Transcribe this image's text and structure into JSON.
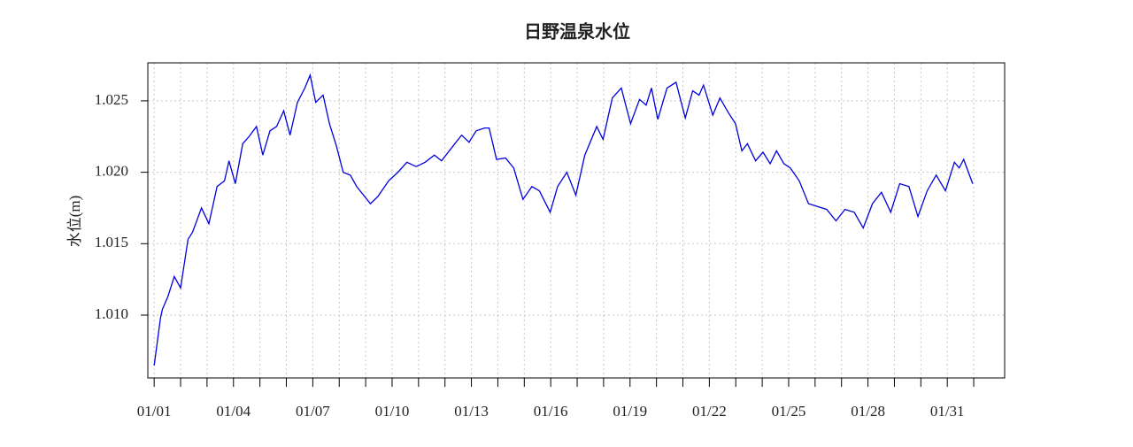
{
  "chart_data": {
    "type": "line",
    "title": "日野温泉水位",
    "y_label": "水位(m)",
    "x": [
      1.0,
      1.24,
      1.31,
      1.52,
      1.76,
      2.0,
      2.28,
      2.45,
      2.79,
      3.07,
      3.38,
      3.66,
      3.83,
      4.07,
      4.35,
      4.59,
      4.87,
      5.11,
      5.38,
      5.63,
      5.9,
      6.14,
      6.42,
      6.7,
      6.9,
      7.11,
      7.39,
      7.63,
      7.9,
      8.15,
      8.42,
      8.66,
      9.18,
      9.46,
      9.87,
      10.22,
      10.56,
      10.91,
      11.25,
      11.6,
      11.87,
      12.29,
      12.63,
      12.91,
      13.18,
      13.5,
      13.67,
      13.95,
      14.29,
      14.6,
      14.95,
      15.29,
      15.57,
      15.98,
      16.26,
      16.61,
      16.95,
      17.29,
      17.74,
      17.98,
      18.33,
      18.67,
      19.02,
      19.36,
      19.61,
      19.81,
      20.05,
      20.4,
      20.74,
      21.09,
      21.37,
      21.61,
      21.78,
      22.13,
      22.4,
      22.71,
      22.99,
      23.23,
      23.44,
      23.75,
      24.03,
      24.3,
      24.54,
      24.82,
      25.06,
      25.4,
      25.75,
      26.1,
      26.44,
      26.79,
      27.13,
      27.48,
      27.82,
      28.17,
      28.51,
      28.86,
      29.2,
      29.55,
      29.89,
      30.24,
      30.58,
      30.93,
      31.27,
      31.45,
      31.62,
      31.96
    ],
    "series": [
      {
        "name": "水位",
        "color": "#0000dd",
        "values": [
          1.00647,
          1.0098,
          1.0104,
          1.0113,
          1.0127,
          1.0119,
          1.0153,
          1.0158,
          1.0175,
          1.0164,
          1.019,
          1.0194,
          1.0208,
          1.0192,
          1.022,
          1.0225,
          1.0232,
          1.0212,
          1.0229,
          1.0232,
          1.0243,
          1.0226,
          1.0249,
          1.0259,
          1.0268,
          1.0249,
          1.0254,
          1.0234,
          1.0218,
          1.02,
          1.0198,
          1.019,
          1.0178,
          1.0183,
          1.0194,
          1.02,
          1.0207,
          1.0204,
          1.0207,
          1.0212,
          1.0208,
          1.0218,
          1.0226,
          1.0221,
          1.0229,
          1.0231,
          1.0231,
          1.0209,
          1.021,
          1.0203,
          1.0181,
          1.019,
          1.0187,
          1.0172,
          1.019,
          1.02,
          1.0184,
          1.0212,
          1.0232,
          1.0223,
          1.0252,
          1.0259,
          1.0234,
          1.0251,
          1.0247,
          1.0259,
          1.0237,
          1.0259,
          1.0263,
          1.0238,
          1.0257,
          1.0254,
          1.0261,
          1.024,
          1.0252,
          1.0242,
          1.0234,
          1.0215,
          1.022,
          1.0208,
          1.0214,
          1.0206,
          1.0215,
          1.0206,
          1.0203,
          1.0194,
          1.0178,
          1.0176,
          1.0174,
          1.0166,
          1.0174,
          1.0172,
          1.0161,
          1.0178,
          1.0186,
          1.0172,
          1.0192,
          1.019,
          1.0169,
          1.0187,
          1.0198,
          1.0187,
          1.0207,
          1.0203,
          1.0209,
          1.0192
        ]
      }
    ],
    "xlim": [
      0.76,
      33.17
    ],
    "ylim": [
      1.0056,
      1.02766
    ],
    "xticks": [
      {
        "value": 1,
        "label": "01/01"
      },
      {
        "value": 4,
        "label": "01/04"
      },
      {
        "value": 7,
        "label": "01/07"
      },
      {
        "value": 10,
        "label": "01/10"
      },
      {
        "value": 13,
        "label": "01/13"
      },
      {
        "value": 16,
        "label": "01/16"
      },
      {
        "value": 19,
        "label": "01/19"
      },
      {
        "value": 22,
        "label": "01/22"
      },
      {
        "value": 25,
        "label": "01/25"
      },
      {
        "value": 28,
        "label": "01/28"
      },
      {
        "value": 31,
        "label": "01/31"
      }
    ],
    "x_minor_ticks": [
      2,
      3,
      5,
      6,
      8,
      9,
      11,
      12,
      14,
      15,
      17,
      18,
      20,
      21,
      23,
      24,
      26,
      27,
      29,
      30,
      32
    ],
    "yticks": [
      {
        "value": 1.01,
        "label": "1.010"
      },
      1.015,
      {
        "value": 1.02,
        "label": "1.020"
      },
      1.025
    ],
    "grid": true
  }
}
